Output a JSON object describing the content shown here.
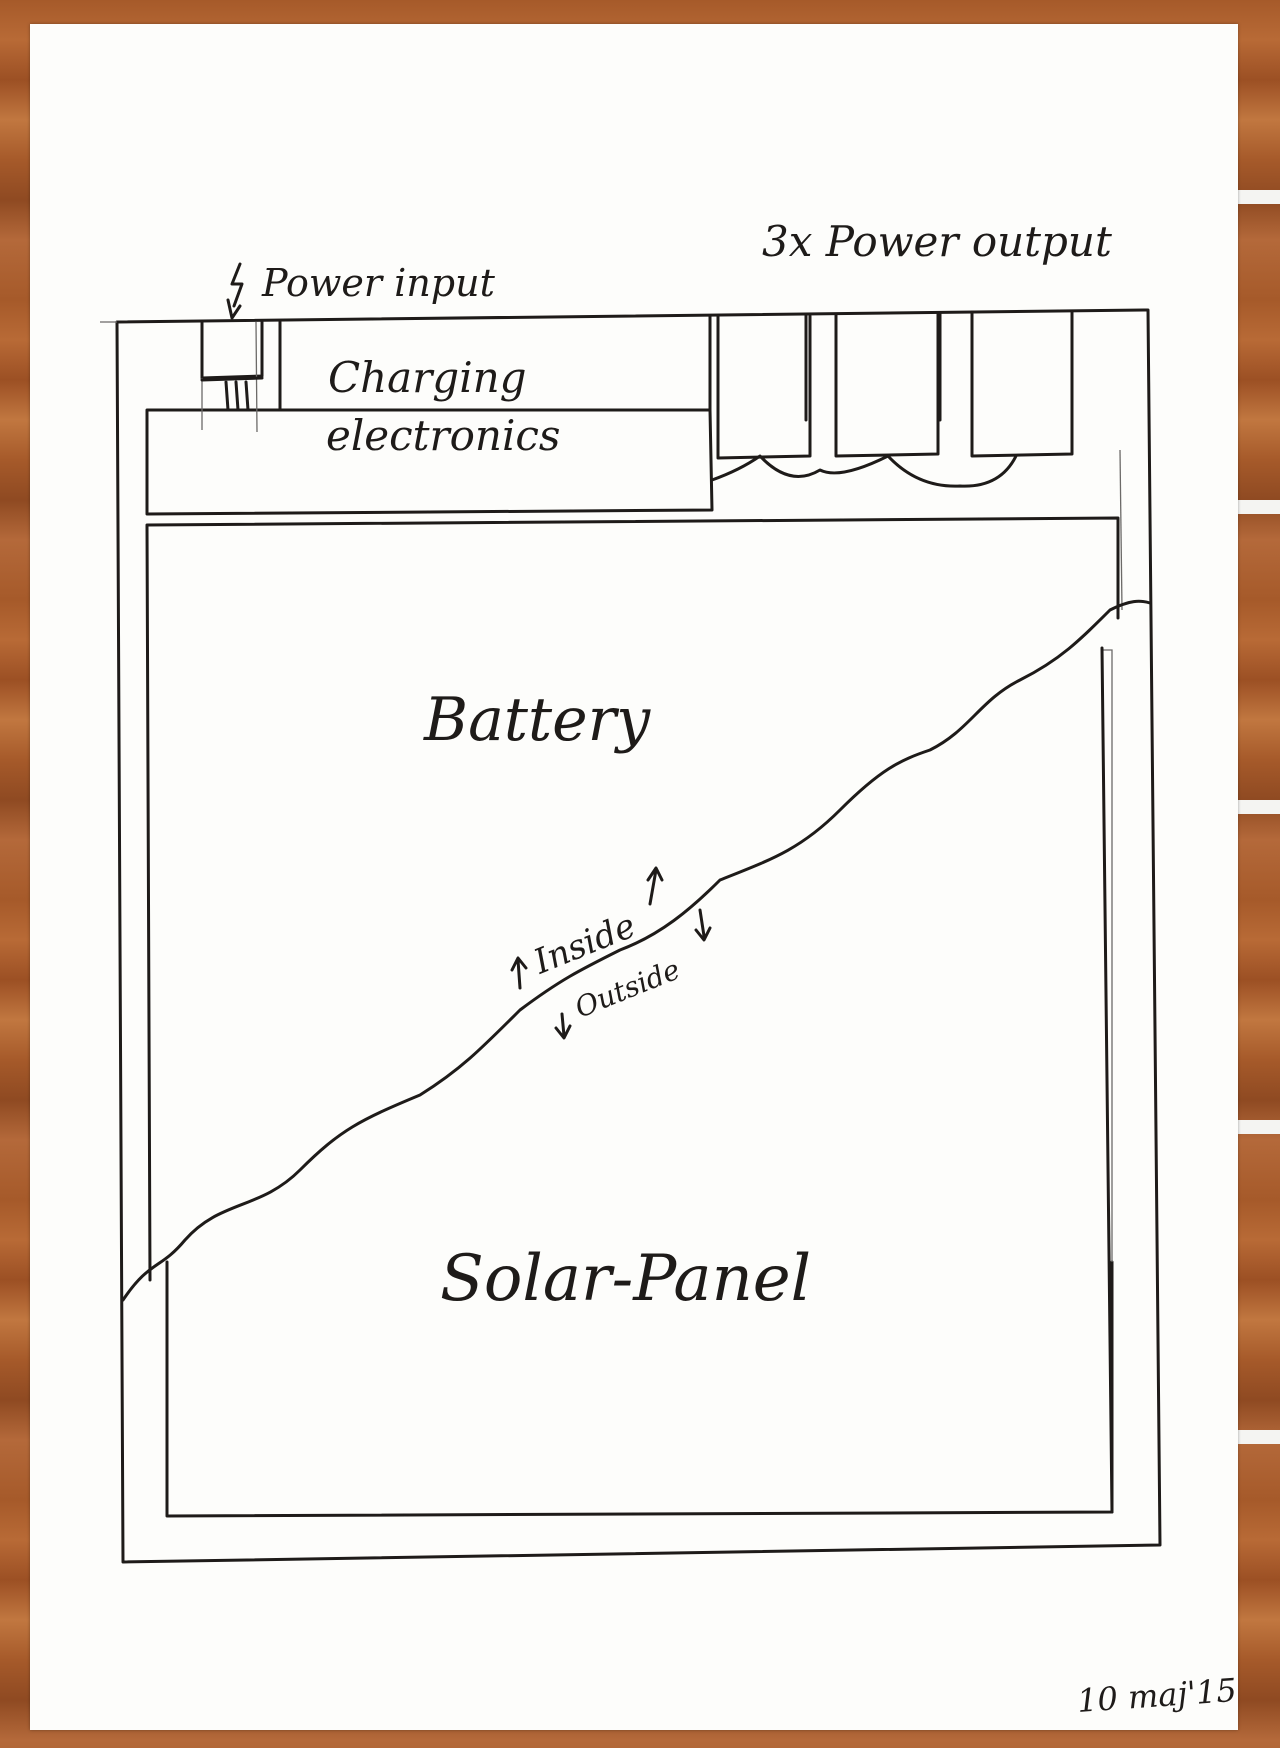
{
  "diagram": {
    "power_input_label": "Power input",
    "power_output_label": "3x Power output",
    "charging_label_line1": "Charging",
    "charging_label_line2": "electronics",
    "battery_label": "Battery",
    "inside_label": "Inside",
    "outside_label": "Outside",
    "solar_panel_label": "Solar-Panel",
    "signature": "10 maj'15"
  },
  "colors": {
    "ink": "#1e1b19",
    "paper": "#fdfdfb",
    "wood": "#a65a2a"
  }
}
